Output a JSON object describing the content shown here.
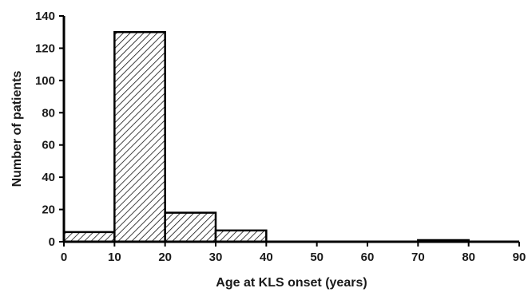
{
  "chart_data": {
    "type": "bar",
    "subtype": "histogram",
    "bins": [
      {
        "start": 0,
        "end": 10,
        "value": 6
      },
      {
        "start": 10,
        "end": 20,
        "value": 130
      },
      {
        "start": 20,
        "end": 30,
        "value": 18
      },
      {
        "start": 30,
        "end": 40,
        "value": 7
      },
      {
        "start": 40,
        "end": 50,
        "value": 0
      },
      {
        "start": 50,
        "end": 60,
        "value": 0
      },
      {
        "start": 60,
        "end": 70,
        "value": 0
      },
      {
        "start": 70,
        "end": 80,
        "value": 1
      },
      {
        "start": 80,
        "end": 90,
        "value": 0
      }
    ],
    "xlabel": "Age at KLS onset (years)",
    "ylabel": "Number of patients",
    "xlim": [
      0,
      90
    ],
    "ylim": [
      0,
      140
    ],
    "xticks": [
      0,
      10,
      20,
      30,
      40,
      50,
      60,
      70,
      80,
      90
    ],
    "yticks": [
      0,
      20,
      40,
      60,
      80,
      100,
      120,
      140
    ],
    "grid": false,
    "fill_pattern": "diagonal-hatch",
    "bar_color": "#000000"
  }
}
